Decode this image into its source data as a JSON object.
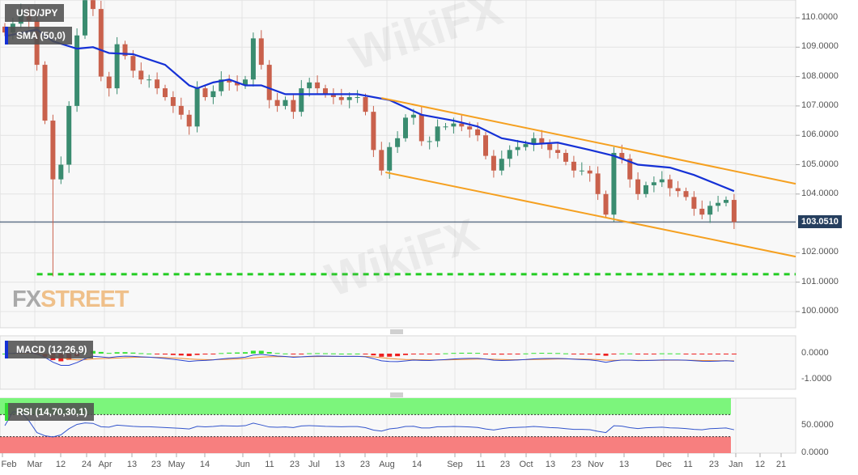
{
  "header": {
    "symbol": "USD/JPY",
    "sma_label": "SMA (50,0)",
    "macd_label": "MACD (12,26,9)",
    "rsi_label": "RSI (14,70,30,1)"
  },
  "watermarks": {
    "fxstreet_fx": "FX",
    "fxstreet_street": "STREET",
    "wikifx": "WikiFX"
  },
  "colors": {
    "up": "#3a8c70",
    "down": "#c9614c",
    "sma": "#1531d6",
    "channel": "#f5a020",
    "support": "#22cc22",
    "last_price": "#263f5f",
    "macd": "#2a44d0",
    "signal": "#f08a30",
    "hist_up": "#33e033",
    "hist_down": "#ee2020",
    "rsi": "#3355cc",
    "rsi_overbought": "#7cf57c",
    "rsi_oversold": "#f77f7f"
  },
  "chart_data": {
    "type": "candlestick",
    "price_axis": {
      "ticks": [
        "110.0000",
        "109.0000",
        "108.0000",
        "107.0000",
        "106.0000",
        "105.0000",
        "104.0000",
        "102.0000",
        "101.0000",
        "100.0000"
      ],
      "range": [
        99.45,
        110.6
      ]
    },
    "x_axis": {
      "ticks": [
        "Feb",
        "Mar",
        "12",
        "24",
        "Apr",
        "13",
        "23",
        "May",
        "14",
        "Jun",
        "11",
        "23",
        "Jul",
        "13",
        "23",
        "Aug",
        "14",
        "Sep",
        "11",
        "23",
        "Oct",
        "13",
        "23",
        "Nov",
        "13",
        "Dec",
        "11",
        "23",
        "Jan",
        "12",
        "21"
      ]
    },
    "last_price": "103.0510",
    "last_price_value": 103.051,
    "closes": [
      109.5,
      109.8,
      110.2,
      109.9,
      108.4,
      106.5,
      104.5,
      105.0,
      107.0,
      109.4,
      110.6,
      110.3,
      108.0,
      107.6,
      109.1,
      108.7,
      108.2,
      107.9,
      107.9,
      107.6,
      107.3,
      107.0,
      106.7,
      106.3,
      107.6,
      107.3,
      107.5,
      107.9,
      107.8,
      107.7,
      107.9,
      109.3,
      108.4,
      107.2,
      107.0,
      107.2,
      106.8,
      107.6,
      107.8,
      107.6,
      107.4,
      107.3,
      107.2,
      107.3,
      107.3,
      106.8,
      105.5,
      104.8,
      105.6,
      105.9,
      106.6,
      106.7,
      105.8,
      105.8,
      106.3,
      106.3,
      106.4,
      106.3,
      106.2,
      106.0,
      105.3,
      104.8,
      105.2,
      105.5,
      105.6,
      105.7,
      105.9,
      105.7,
      105.5,
      105.4,
      105.1,
      104.8,
      104.8,
      104.7,
      104.0,
      103.3,
      105.4,
      105.2,
      104.5,
      104.0,
      104.3,
      104.4,
      104.5,
      104.2,
      104.1,
      103.9,
      103.5,
      103.3,
      103.6,
      103.7,
      103.8,
      103.05
    ],
    "low_overrides": {
      "6": 101.2
    },
    "sma50": [
      [
        0,
        109.37
      ],
      [
        4,
        109.6
      ],
      [
        6,
        109.2
      ],
      [
        9,
        108.95
      ],
      [
        11,
        109.0
      ],
      [
        13,
        108.8
      ],
      [
        16,
        108.76
      ],
      [
        20,
        108.4
      ],
      [
        23,
        107.7
      ],
      [
        24,
        107.6
      ],
      [
        26,
        107.8
      ],
      [
        28,
        107.9
      ],
      [
        30,
        107.7
      ],
      [
        32,
        107.7
      ],
      [
        35,
        107.4
      ],
      [
        38,
        107.4
      ],
      [
        41,
        107.4
      ],
      [
        44,
        107.4
      ],
      [
        48,
        107.2
      ],
      [
        52,
        106.7
      ],
      [
        56,
        106.5
      ],
      [
        59,
        106.3
      ],
      [
        62,
        105.9
      ],
      [
        66,
        105.7
      ],
      [
        69,
        105.75
      ],
      [
        73,
        105.5
      ],
      [
        76,
        105.3
      ],
      [
        79,
        105.0
      ],
      [
        83,
        104.9
      ],
      [
        86,
        104.65
      ],
      [
        91,
        104.1
      ]
    ],
    "channel_upper": [
      [
        47,
        107.27
      ],
      [
        99.5,
        104.35
      ]
    ],
    "channel_lower": [
      [
        47.5,
        104.74
      ],
      [
        99.5,
        101.87
      ]
    ],
    "support_level": 101.27,
    "support_from_index": 4,
    "macd": {
      "params": [
        12,
        26,
        9
      ],
      "ticks": [
        "0.0000",
        "-1.0000"
      ],
      "range": [
        -1.41,
        0.69
      ]
    },
    "rsi": {
      "params": [
        14,
        70,
        30
      ],
      "ticks": [
        "50.0000",
        "0.0000"
      ],
      "overbought": 70,
      "oversold": 30
    }
  }
}
